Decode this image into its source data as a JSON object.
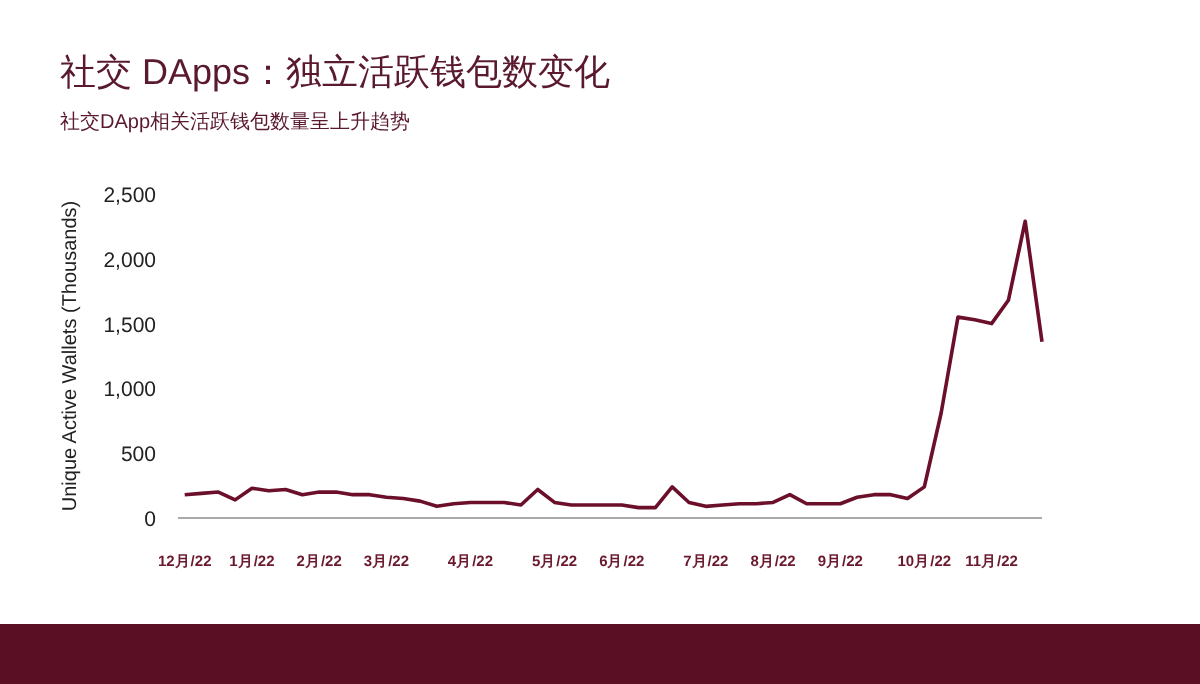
{
  "chart_data": {
    "type": "line",
    "title": "社交 DApps：独立活跃钱包数变化",
    "subtitle": "社交DApp相关活跃钱包数量呈上升趋势",
    "ylabel": "Unique Active Wallets (Thousands)",
    "categories": [
      "12月/22",
      null,
      null,
      null,
      "1月/22",
      null,
      null,
      null,
      "2月/22",
      null,
      null,
      null,
      "3月/22",
      null,
      null,
      null,
      null,
      "4月/22",
      null,
      null,
      null,
      null,
      "5月/22",
      null,
      null,
      null,
      "6月/22",
      null,
      null,
      null,
      null,
      "7月/22",
      null,
      null,
      null,
      "8月/22",
      null,
      null,
      null,
      "9月/22",
      null,
      null,
      null,
      null,
      "10月/22",
      null,
      null,
      null,
      "11月/22",
      null,
      null,
      null
    ],
    "series": [
      {
        "color": "#6b0f2a",
        "values": [
          180,
          190,
          200,
          140,
          230,
          210,
          220,
          180,
          200,
          200,
          180,
          180,
          160,
          150,
          130,
          90,
          110,
          120,
          120,
          120,
          100,
          220,
          120,
          100,
          100,
          100,
          100,
          80,
          80,
          240,
          120,
          90,
          100,
          110,
          110,
          120,
          180,
          110,
          110,
          110,
          160,
          180,
          180,
          150,
          240,
          810,
          1550,
          1530,
          1500,
          1680,
          2290,
          1360
        ]
      }
    ],
    "ylim": [
      0,
      2500
    ],
    "yticks": [
      {
        "value": 0,
        "label": "0"
      },
      {
        "value": 500,
        "label": "500"
      },
      {
        "value": 1000,
        "label": "1,000"
      },
      {
        "value": 1500,
        "label": "1,500"
      },
      {
        "value": 2000,
        "label": "2,000"
      },
      {
        "value": 2500,
        "label": "2,500"
      }
    ],
    "marker": "none",
    "line_style": "solid"
  }
}
